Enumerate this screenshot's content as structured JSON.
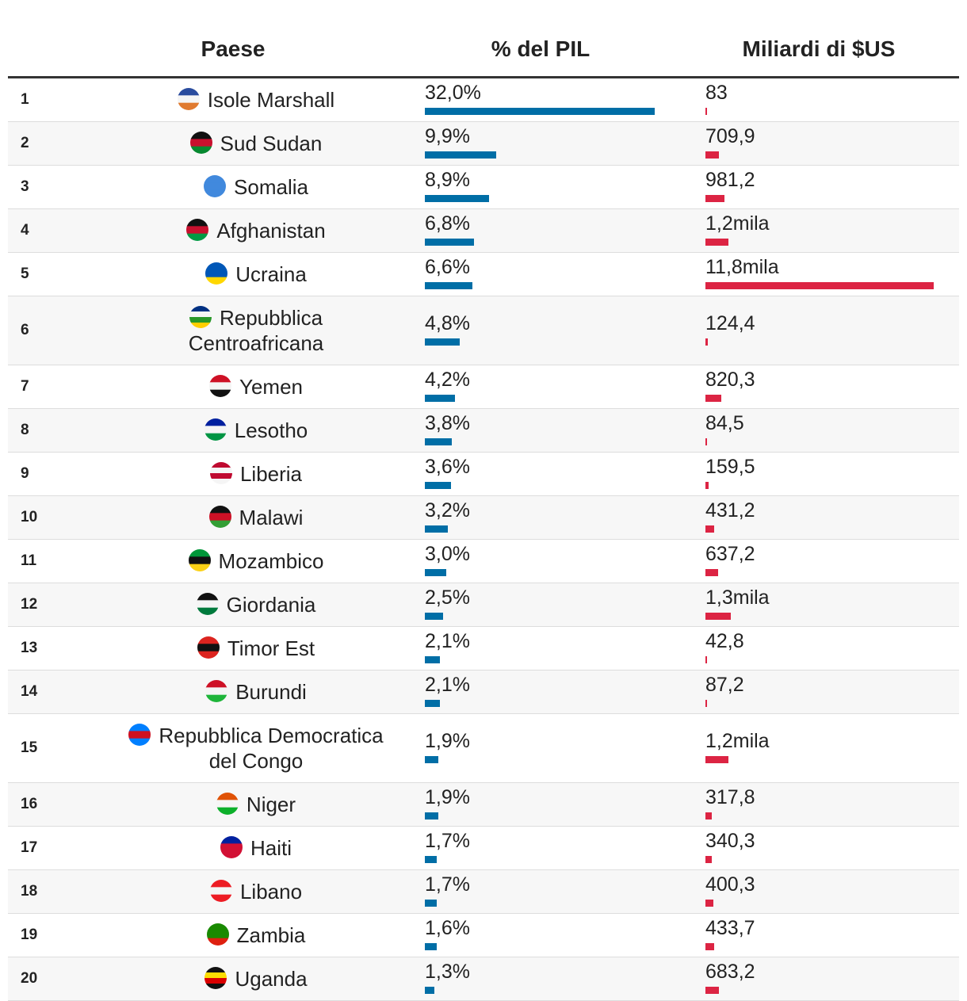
{
  "table": {
    "columns": [
      "Paese",
      "% del PIL",
      "Miliardi di $US"
    ],
    "rows": [
      {
        "rank": 1,
        "country": "Isole Marshall",
        "pil": 32.0,
        "pil_label": "32,0%",
        "usd": 83
      },
      {
        "rank": 2,
        "country": "Sud Sudan",
        "pil": 9.9,
        "pil_label": "9,9%",
        "usd": 709.9,
        "usd_label": "709,9"
      },
      {
        "rank": 3,
        "country": "Somalia",
        "pil": 8.9,
        "pil_label": "8,9%",
        "usd": 981.2,
        "usd_label": "981,2"
      },
      {
        "rank": 4,
        "country": "Afghanistan",
        "pil": 6.8,
        "pil_label": "6,8%",
        "usd": 1200,
        "usd_label": "1,2mila"
      },
      {
        "rank": 5,
        "country": "Ucraina",
        "pil": 6.6,
        "pil_label": "6,6%",
        "usd": 11800,
        "usd_label": "11,8mila"
      },
      {
        "rank": 6,
        "country": "Repubblica Centroafricana",
        "pil": 4.8,
        "pil_label": "4,8%",
        "usd": 124.4,
        "usd_label": "124,4"
      },
      {
        "rank": 7,
        "country": "Yemen",
        "pil": 4.2,
        "pil_label": "4,2%",
        "usd": 820.3,
        "usd_label": "820,3"
      },
      {
        "rank": 8,
        "country": "Lesotho",
        "pil": 3.8,
        "pil_label": "3,8%",
        "usd": 84.5,
        "usd_label": "84,5"
      },
      {
        "rank": 9,
        "country": "Liberia",
        "pil": 3.6,
        "pil_label": "3,6%",
        "usd": 159.5,
        "usd_label": "159,5"
      },
      {
        "rank": 10,
        "country": "Malawi",
        "pil": 3.2,
        "pil_label": "3,2%",
        "usd": 431.2,
        "usd_label": "431,2"
      },
      {
        "rank": 11,
        "country": "Mozambico",
        "pil": 3.0,
        "pil_label": "3,0%",
        "usd": 637.2,
        "usd_label": "637,2"
      },
      {
        "rank": 12,
        "country": "Giordania",
        "pil": 2.5,
        "pil_label": "2,5%",
        "usd": 1300,
        "usd_label": "1,3mila"
      },
      {
        "rank": 13,
        "country": "Timor Est",
        "pil": 2.1,
        "pil_label": "2,1%",
        "usd": 42.8,
        "usd_label": "42,8"
      },
      {
        "rank": 14,
        "country": "Burundi",
        "pil": 2.1,
        "pil_label": "2,1%",
        "usd": 87.2,
        "usd_label": "87,2"
      },
      {
        "rank": 15,
        "country": "Repubblica Democratica del Congo",
        "pil": 1.9,
        "pil_label": "1,9%",
        "usd": 1200,
        "usd_label": "1,2mila"
      },
      {
        "rank": 16,
        "country": "Niger",
        "pil": 1.9,
        "pil_label": "1,9%",
        "usd": 317.8,
        "usd_label": "317,8"
      },
      {
        "rank": 17,
        "country": "Haiti",
        "pil": 1.7,
        "pil_label": "1,7%",
        "usd": 340.3,
        "usd_label": "340,3"
      },
      {
        "rank": 18,
        "country": "Libano",
        "pil": 1.7,
        "pil_label": "1,7%",
        "usd": 400.3,
        "usd_label": "400,3"
      },
      {
        "rank": 19,
        "country": "Zambia",
        "pil": 1.6,
        "pil_label": "1,6%",
        "usd": 433.7,
        "usd_label": "433,7"
      },
      {
        "rank": 20,
        "country": "Uganda",
        "pil": 1.3,
        "pil_label": "1,3%",
        "usd": 683.2,
        "usd_label": "683,2"
      }
    ]
  }
}
